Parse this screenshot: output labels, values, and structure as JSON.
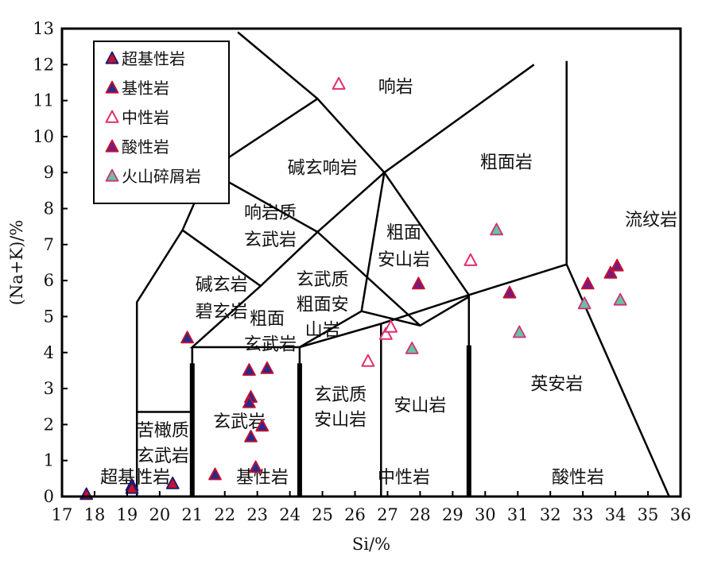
{
  "chart_data": {
    "type": "scatter",
    "title": "",
    "xlabel": "Si/%",
    "ylabel": "(Na+K)/%",
    "xlim": [
      17,
      36
    ],
    "ylim": [
      0,
      13
    ],
    "xticks": [
      17,
      18,
      19,
      20,
      21,
      22,
      23,
      24,
      25,
      26,
      27,
      28,
      29,
      30,
      31,
      32,
      33,
      34,
      35,
      36
    ],
    "yticks": [
      0,
      1,
      2,
      3,
      4,
      5,
      6,
      7,
      8,
      9,
      10,
      11,
      12,
      13
    ],
    "grid": false,
    "legend_position": "top-left",
    "series": [
      {
        "name": "超基性岩",
        "marker": "filled-triangle",
        "fill": "#c8102e",
        "edge": "#1a1a6e",
        "points": [
          [
            17.75,
            0.05
          ],
          [
            19.15,
            0.3
          ],
          [
            19.15,
            0.22
          ],
          [
            20.4,
            0.35
          ]
        ]
      },
      {
        "name": "基性岩",
        "marker": "filled-triangle",
        "fill": "#2a2a8a",
        "edge": "#c8102e",
        "points": [
          [
            20.85,
            4.4
          ],
          [
            21.7,
            0.6
          ],
          [
            22.75,
            3.5
          ],
          [
            23.3,
            3.55
          ],
          [
            22.8,
            2.75
          ],
          [
            22.75,
            2.6
          ],
          [
            23.15,
            1.95
          ],
          [
            22.8,
            1.65
          ],
          [
            22.95,
            0.8
          ]
        ]
      },
      {
        "name": "中性岩",
        "marker": "open-triangle",
        "fill": "#ffffff",
        "edge": "#e0306a",
        "points": [
          [
            25.5,
            11.45
          ],
          [
            26.4,
            3.75
          ],
          [
            26.95,
            4.5
          ],
          [
            27.1,
            4.7
          ],
          [
            29.55,
            6.55
          ]
        ]
      },
      {
        "name": "酸性岩",
        "marker": "filled-triangle",
        "fill": "#7a1a7a",
        "edge": "#c8102e",
        "points": [
          [
            27.95,
            5.9
          ],
          [
            30.75,
            5.65
          ],
          [
            33.15,
            5.9
          ],
          [
            33.85,
            6.2
          ],
          [
            34.05,
            6.4
          ]
        ]
      },
      {
        "name": "火山碎屑岩",
        "marker": "filled-triangle",
        "fill": "#66c4a0",
        "edge": "#d0307a",
        "points": [
          [
            30.35,
            7.4
          ],
          [
            27.75,
            4.1
          ],
          [
            31.05,
            4.55
          ],
          [
            33.05,
            5.35
          ],
          [
            34.15,
            5.45
          ]
        ]
      }
    ],
    "field_labels": [
      {
        "text": "响岩",
        "x": 27.25,
        "y": 11.4
      },
      {
        "text": "碱玄响岩",
        "x": 25.0,
        "y": 9.15
      },
      {
        "text": "粗面岩",
        "x": 30.65,
        "y": 9.3
      },
      {
        "text": "流纹岩",
        "x": 35.1,
        "y": 7.7
      },
      {
        "text": "响岩质",
        "x": 23.4,
        "y": 7.9
      },
      {
        "text": "玄武岩",
        "x": 23.4,
        "y": 7.15
      },
      {
        "text": "粗面",
        "x": 27.5,
        "y": 7.35
      },
      {
        "text": "安山岩",
        "x": 27.5,
        "y": 6.6
      },
      {
        "text": "碱玄岩",
        "x": 21.9,
        "y": 5.9
      },
      {
        "text": "碧玄岩",
        "x": 21.9,
        "y": 5.15
      },
      {
        "text": "玄武质",
        "x": 25.0,
        "y": 6.05
      },
      {
        "text": "粗面安",
        "x": 25.0,
        "y": 5.35
      },
      {
        "text": "山岩",
        "x": 25.0,
        "y": 4.65
      },
      {
        "text": "粗面",
        "x": 23.3,
        "y": 4.95
      },
      {
        "text": "玄武岩",
        "x": 23.4,
        "y": 4.25
      },
      {
        "text": "英安岩",
        "x": 32.2,
        "y": 3.15
      },
      {
        "text": "安山岩",
        "x": 28.0,
        "y": 2.55
      },
      {
        "text": "玄武质",
        "x": 25.55,
        "y": 2.85
      },
      {
        "text": "安山岩",
        "x": 25.55,
        "y": 2.15
      },
      {
        "text": "玄武岩",
        "x": 22.45,
        "y": 2.1
      },
      {
        "text": "苦橄质",
        "x": 20.1,
        "y": 1.85
      },
      {
        "text": "玄武岩",
        "x": 20.1,
        "y": 1.15
      },
      {
        "text": "超基性岩",
        "x": 19.25,
        "y": 0.55
      },
      {
        "text": "基性岩",
        "x": 23.15,
        "y": 0.55
      },
      {
        "text": "中性岩",
        "x": 27.5,
        "y": 0.55
      },
      {
        "text": "酸性岩",
        "x": 32.85,
        "y": 0.55
      }
    ]
  }
}
